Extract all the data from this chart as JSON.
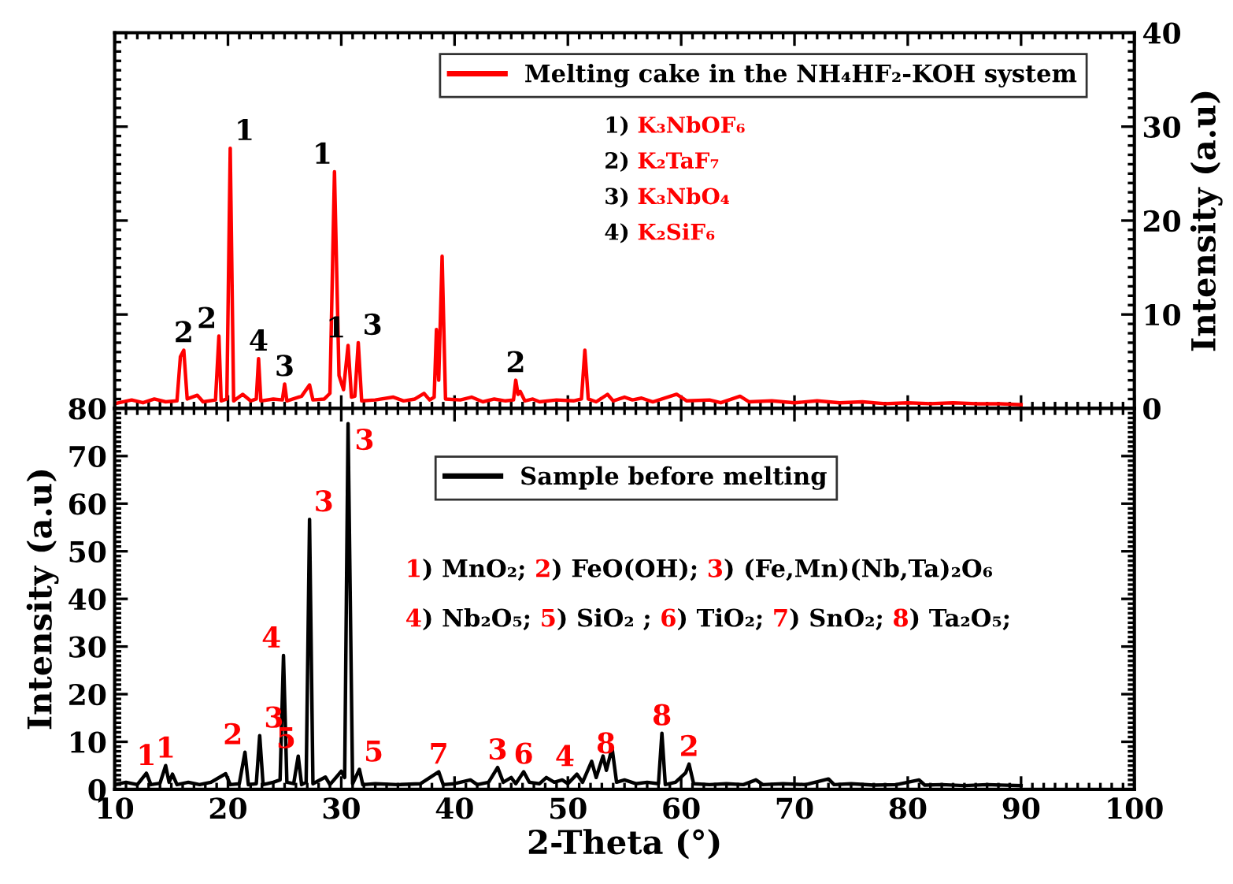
{
  "chart_data": [
    {
      "type": "line",
      "xlim": [
        10,
        100
      ],
      "xticks": [
        10,
        20,
        30,
        40,
        50,
        60,
        70,
        80,
        90,
        100
      ],
      "ylim": [
        0,
        40
      ],
      "yticks": [
        0,
        10,
        20,
        30,
        40
      ],
      "ylabel": "Intensity (a.u)",
      "tick_labels": "y",
      "legend": "top right",
      "series": [
        {
          "name": "Melting cake in the NH₄HF₂-KOH system",
          "color": "#ff0000",
          "x": [
            10.0,
            11.5,
            12.5,
            13.5,
            14.5,
            15.5,
            15.8,
            16.1,
            16.4,
            17.3,
            17.8,
            18.9,
            19.2,
            19.4,
            19.9,
            20.2,
            20.5,
            21.3,
            22.0,
            22.5,
            22.7,
            22.9,
            24.0,
            24.8,
            25.0,
            25.2,
            26.5,
            27.2,
            27.5,
            28.5,
            29.0,
            29.4,
            29.8,
            30.2,
            30.6,
            30.9,
            31.2,
            31.5,
            31.8,
            33.0,
            34.6,
            35.5,
            36.5,
            37.3,
            37.8,
            38.2,
            38.4,
            38.6,
            38.9,
            39.2,
            40.5,
            41.5,
            42.5,
            43.5,
            44.5,
            45.2,
            45.4,
            45.6,
            45.8,
            46.2,
            46.9,
            47.5,
            49.0,
            50.5,
            51.2,
            51.5,
            51.8,
            52.5,
            53.5,
            54.0,
            55.0,
            55.7,
            56.5,
            57.5,
            59.6,
            60.5,
            62.5,
            63.5,
            65.2,
            66.0,
            68.0,
            70.0,
            72.0,
            74.0,
            76.0,
            78.0,
            80.0,
            82.0,
            84.0,
            86.0,
            88.0,
            90.0
          ],
          "values": [
            0.5,
            0.9,
            0.6,
            1.0,
            0.7,
            0.8,
            5.5,
            6.2,
            1.0,
            1.4,
            0.7,
            0.9,
            7.7,
            0.8,
            1.0,
            27.7,
            0.8,
            1.5,
            0.8,
            1.0,
            5.3,
            0.8,
            1.0,
            0.9,
            2.6,
            0.8,
            1.3,
            2.5,
            0.9,
            1.0,
            1.6,
            25.2,
            3.5,
            2.0,
            6.7,
            1.2,
            1.3,
            7.0,
            0.8,
            0.9,
            1.2,
            0.8,
            1.0,
            1.6,
            0.9,
            1.2,
            8.4,
            3.0,
            16.2,
            1.0,
            0.9,
            1.2,
            0.7,
            1.0,
            0.8,
            0.9,
            3.0,
            1.5,
            1.8,
            0.8,
            1.0,
            0.7,
            0.9,
            0.8,
            1.0,
            6.2,
            1.0,
            0.7,
            1.5,
            0.8,
            1.2,
            0.9,
            1.1,
            0.7,
            1.5,
            0.8,
            0.9,
            0.6,
            1.3,
            0.7,
            0.8,
            0.6,
            0.8,
            0.6,
            0.7,
            0.5,
            0.6,
            0.5,
            0.6,
            0.5,
            0.5,
            0.4
          ]
        }
      ],
      "annotations": [
        {
          "text": "2",
          "x": 16.1,
          "y": 6.2
        },
        {
          "text": "2",
          "x": 19.2,
          "y": 7.7
        },
        {
          "text": "1",
          "x": 20.2,
          "y": 27.7
        },
        {
          "text": "4",
          "x": 22.7,
          "y": 5.3
        },
        {
          "text": "3",
          "x": 25.0,
          "y": 2.6
        },
        {
          "text": "1",
          "x": 29.4,
          "y": 25.2
        },
        {
          "text": "1",
          "x": 30.6,
          "y": 6.7
        },
        {
          "text": "3",
          "x": 31.5,
          "y": 7.0
        },
        {
          "text": "2",
          "x": 45.4,
          "y": 3.0
        },
        "1) K₃NbOF₆",
        "2) K₂TaF₇",
        "3) K₃NbO₄",
        "4) K₂SiF₆"
      ]
    },
    {
      "type": "line",
      "xlim": [
        10,
        100
      ],
      "xticks": [
        10,
        20,
        30,
        40,
        50,
        60,
        70,
        80,
        90,
        100
      ],
      "ylim": [
        0,
        80
      ],
      "yticks": [
        0,
        10,
        20,
        30,
        40,
        50,
        60,
        70,
        80
      ],
      "xlabel": "2-Theta (°)",
      "ylabel": "Intensity (a.u)",
      "legend": "top right",
      "series": [
        {
          "name": "Sample before melting",
          "color": "#000000",
          "x": [
            10.0,
            11.0,
            12.0,
            12.8,
            13.2,
            14.0,
            14.5,
            14.8,
            15.1,
            15.5,
            16.5,
            17.5,
            18.5,
            19.8,
            20.2,
            21.0,
            21.5,
            21.8,
            22.5,
            22.8,
            23.1,
            24.0,
            24.6,
            24.9,
            25.2,
            25.8,
            26.2,
            26.5,
            26.9,
            27.2,
            27.5,
            28.6,
            29.0,
            30.0,
            30.3,
            30.6,
            31.0,
            31.6,
            31.9,
            33.0,
            35.0,
            37.0,
            38.6,
            39.0,
            40.0,
            41.4,
            42.0,
            43.0,
            43.8,
            44.3,
            45.0,
            45.4,
            46.1,
            46.6,
            47.5,
            48.1,
            48.8,
            49.5,
            50.0,
            50.8,
            51.3,
            52.1,
            52.5,
            53.1,
            53.4,
            53.9,
            54.3,
            55.0,
            56.0,
            57.0,
            58.0,
            58.3,
            58.6,
            59.5,
            60.4,
            60.7,
            61.1,
            62.5,
            64.0,
            65.5,
            66.6,
            67.2,
            69.0,
            71.0,
            73.0,
            73.5,
            75.0,
            77.0,
            79.0,
            81.0,
            81.5,
            83.0,
            85.0,
            87.0,
            90.0
          ],
          "values": [
            1.0,
            1.5,
            1.0,
            3.4,
            1.0,
            1.3,
            5.0,
            1.5,
            3.2,
            1.0,
            1.5,
            1.0,
            1.5,
            3.3,
            1.0,
            1.2,
            7.8,
            1.0,
            1.2,
            11.3,
            1.0,
            1.5,
            2.0,
            28.1,
            1.5,
            1.2,
            7.0,
            1.0,
            1.5,
            56.7,
            1.2,
            2.6,
            1.0,
            3.8,
            2.5,
            76.8,
            1.2,
            4.2,
            1.0,
            1.2,
            1.0,
            1.2,
            3.7,
            1.0,
            1.2,
            2.0,
            1.0,
            1.5,
            4.6,
            1.5,
            2.5,
            1.2,
            3.7,
            1.5,
            1.2,
            2.5,
            1.5,
            2.0,
            1.2,
            3.2,
            1.5,
            5.9,
            2.5,
            7.0,
            4.0,
            8.7,
            1.5,
            2.0,
            1.2,
            1.5,
            1.2,
            11.8,
            1.0,
            1.5,
            3.5,
            5.3,
            1.2,
            1.0,
            1.2,
            1.0,
            2.0,
            1.0,
            1.2,
            1.0,
            2.2,
            1.0,
            1.2,
            0.9,
            1.0,
            2.0,
            0.9,
            1.0,
            0.8,
            1.0,
            0.8
          ]
        }
      ],
      "annotations": [
        {
          "text": "1",
          "x": 12.8,
          "y": 3.4
        },
        {
          "text": "1",
          "x": 14.5,
          "y": 5.0
        },
        {
          "text": "2",
          "x": 21.5,
          "y": 7.8
        },
        {
          "text": "3",
          "x": 22.8,
          "y": 11.3
        },
        {
          "text": "4",
          "x": 24.9,
          "y": 28.1
        },
        {
          "text": "5",
          "x": 26.2,
          "y": 7.0
        },
        {
          "text": "3",
          "x": 27.2,
          "y": 56.7
        },
        {
          "text": "3",
          "x": 30.6,
          "y": 76.8
        },
        {
          "text": "5",
          "x": 31.6,
          "y": 4.2
        },
        {
          "text": "7",
          "x": 38.6,
          "y": 3.7
        },
        {
          "text": "3",
          "x": 43.8,
          "y": 4.6
        },
        {
          "text": "6",
          "x": 46.1,
          "y": 3.7
        },
        {
          "text": "4",
          "x": 50.8,
          "y": 3.2
        },
        {
          "text": "8",
          "x": 52.1,
          "y": 5.9
        },
        {
          "text": "8",
          "x": 58.3,
          "y": 11.8
        },
        {
          "text": "2",
          "x": 60.7,
          "y": 5.3
        },
        "1) MnO₂; 2) FeO(OH); 3) (Fe,Mn)(Nb,Ta)₂O₆",
        "4) Nb₂O₅; 5) SiO₂ ; 6) TiO₂; 7) SnO₂; 8) Ta₂O₅;"
      ]
    }
  ]
}
